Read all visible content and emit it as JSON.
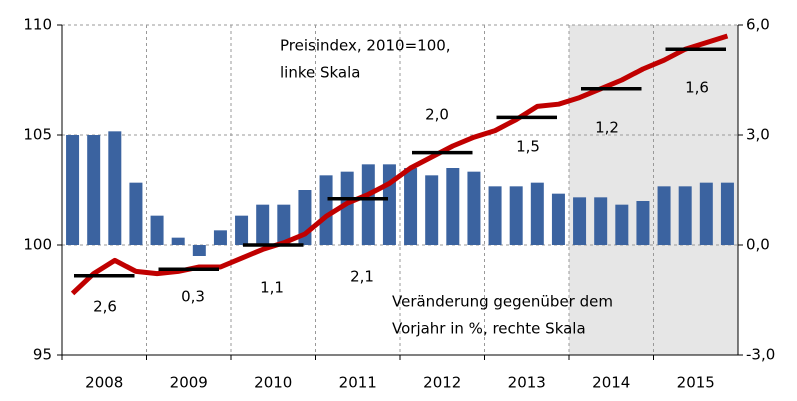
{
  "chart_data": {
    "type": "bar-line",
    "categories": [
      "2008",
      "2009",
      "2010",
      "2011",
      "2012",
      "2013",
      "2014",
      "2015"
    ],
    "shaded": [
      "2014",
      "2015"
    ],
    "ylim": [
      95,
      110
    ],
    "yticks": [
      95,
      100,
      105,
      110
    ],
    "y2lim": [
      -3,
      6
    ],
    "y2ticks": [
      {
        "value": -3,
        "label": "-3,0"
      },
      {
        "value": 0,
        "label": "0,0"
      },
      {
        "value": 3,
        "label": "3,0"
      },
      {
        "value": 6,
        "label": "6,0"
      }
    ],
    "grid": true,
    "annotations": [
      "Preisindex, 2010=100,",
      "linke Skala",
      "Veränderung gegenüber dem",
      "Vorjahr in %, rechte Skala"
    ],
    "series": [
      {
        "type": "bar",
        "axis": "y2",
        "color": "#3b63a0",
        "values": [
          [
            3.0,
            3.0,
            3.1,
            1.7
          ],
          [
            0.8,
            0.2,
            -0.3,
            0.4
          ],
          [
            0.8,
            1.1,
            1.1,
            1.5
          ],
          [
            1.9,
            2.0,
            2.2,
            2.2
          ],
          [
            2.1,
            1.9,
            2.1,
            2.0
          ],
          [
            1.6,
            1.6,
            1.7,
            1.4
          ],
          [
            1.3,
            1.3,
            1.1,
            1.2
          ],
          [
            1.6,
            1.6,
            1.7,
            1.7
          ]
        ]
      },
      {
        "type": "line",
        "color": "#c00000",
        "values": [
          [
            97.8,
            98.7,
            99.3,
            98.8
          ],
          [
            98.7,
            98.8,
            99.0,
            99.0
          ],
          [
            99.4,
            99.8,
            100.1,
            100.5
          ],
          [
            101.3,
            101.9,
            102.3,
            102.8
          ],
          [
            103.5,
            104.0,
            104.5,
            104.9
          ],
          [
            105.2,
            105.7,
            106.3,
            106.4
          ],
          [
            106.7,
            107.1,
            107.5,
            108.0
          ],
          [
            108.4,
            108.9,
            109.2,
            109.5
          ]
        ]
      },
      {
        "type": "average",
        "color": "#000000",
        "values": [
          98.6,
          98.9,
          100.0,
          102.1,
          104.2,
          105.8,
          107.1,
          108.9
        ]
      },
      {
        "type": "label",
        "values": [
          2.6,
          0.3,
          1.1,
          2.1,
          2.0,
          1.5,
          1.2,
          1.6
        ],
        "value_labels": [
          "2,6",
          "0,3",
          "1,1",
          "2,1",
          "2,0",
          "1,5",
          "1,2",
          "1,6"
        ]
      }
    ]
  }
}
